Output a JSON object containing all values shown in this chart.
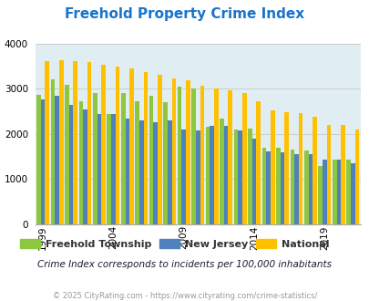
{
  "title": "Freehold Property Crime Index",
  "subtitle": "Crime Index corresponds to incidents per 100,000 inhabitants",
  "footer": "© 2025 CityRating.com - https://www.cityrating.com/crime-statistics/",
  "years": [
    1999,
    2000,
    2001,
    2002,
    2003,
    2004,
    2005,
    2006,
    2007,
    2008,
    2009,
    2010,
    2011,
    2012,
    2013,
    2014,
    2015,
    2016,
    2017,
    2018,
    2019,
    2020,
    2021
  ],
  "freehold": [
    2870,
    3210,
    3080,
    2720,
    2900,
    2450,
    2900,
    2720,
    2850,
    2700,
    3040,
    3000,
    2150,
    2340,
    2090,
    2120,
    1700,
    1700,
    1650,
    1630,
    1290,
    1430,
    1430
  ],
  "nj": [
    2770,
    2840,
    2640,
    2550,
    2450,
    2450,
    2350,
    2300,
    2250,
    2290,
    2090,
    2070,
    2170,
    2180,
    2080,
    1890,
    1620,
    1590,
    1560,
    1560,
    1430,
    1430,
    1360
  ],
  "national": [
    3620,
    3640,
    3620,
    3590,
    3530,
    3500,
    3460,
    3380,
    3310,
    3230,
    3190,
    3060,
    3010,
    2960,
    2910,
    2730,
    2520,
    2490,
    2460,
    2390,
    2200,
    2190,
    2100
  ],
  "freehold_color": "#8DC63F",
  "nj_color": "#4F81BD",
  "national_color": "#FFC000",
  "bg_color": "#E0EEF4",
  "ylim": [
    0,
    4000
  ],
  "yticks": [
    0,
    1000,
    2000,
    3000,
    4000
  ],
  "xtick_years": [
    1999,
    2004,
    2009,
    2014,
    2019
  ],
  "title_color": "#1874CD",
  "subtitle_color": "#1a1a2e",
  "footer_color": "#999999",
  "grid_color": "#CCCCCC",
  "legend_text_color": "#333333"
}
